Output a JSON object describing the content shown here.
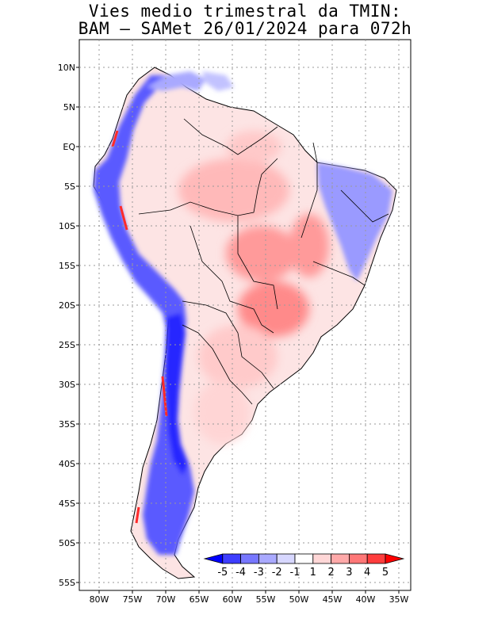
{
  "title": {
    "line1": "Vies medio trimestral da TMIN:",
    "line2": "BAM – SAMet 26/01/2024  para 072h"
  },
  "map": {
    "lon_ticks": [
      "80W",
      "75W",
      "70W",
      "65W",
      "60W",
      "55W",
      "50W",
      "45W",
      "40W",
      "35W"
    ],
    "lat_ticks": [
      "10N",
      "5N",
      "EQ",
      "5S",
      "10S",
      "15S",
      "20S",
      "25S",
      "30S",
      "35S",
      "40S",
      "45S",
      "50S",
      "55S"
    ],
    "grid": true,
    "region": "South America"
  },
  "colorbar": {
    "labels": [
      "-5",
      "-4",
      "-3",
      "-2",
      "-1",
      "1",
      "2",
      "3",
      "4",
      "5"
    ],
    "colors": [
      "#0000ff",
      "#3d3dff",
      "#7777ff",
      "#a9a9ff",
      "#d7d7ff",
      "#ffffff",
      "#ffd7d7",
      "#ffa9a9",
      "#ff7777",
      "#ff3d3d",
      "#ff0000"
    ],
    "placement": "bottom-right"
  }
}
